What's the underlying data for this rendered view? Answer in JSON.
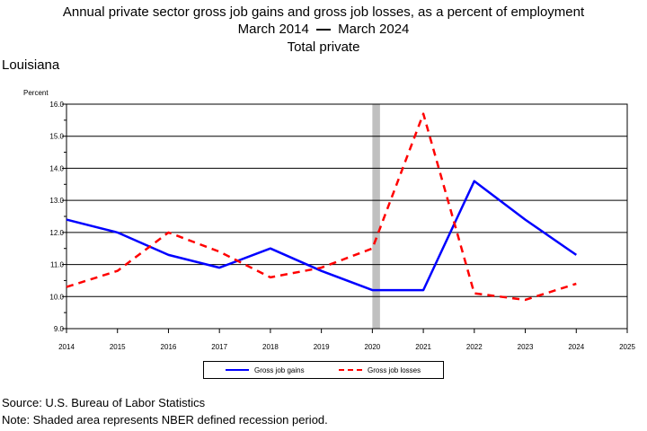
{
  "header": {
    "title": "Annual private sector gross job gains and gross job losses, as a percent of employment",
    "period_start": "March 2014",
    "period_end": "March 2024",
    "subtitle": "Total private",
    "region": "Louisiana"
  },
  "footer": {
    "source": "Source: U.S. Bureau of Labor Statistics",
    "note": "Note: Shaded area represents NBER defined recession period."
  },
  "chart_data": {
    "type": "line",
    "ylabel": "Percent",
    "xlim": [
      2014,
      2025
    ],
    "ylim": [
      9.0,
      16.0
    ],
    "x_ticks": [
      "2014",
      "2015",
      "2016",
      "2017",
      "2018",
      "2019",
      "2020",
      "2021",
      "2022",
      "2023",
      "2024",
      "2025"
    ],
    "y_ticks": [
      "9.0",
      "10.0",
      "11.0",
      "12.0",
      "13.0",
      "14.0",
      "15.0",
      "16.0"
    ],
    "grid": "horizontal",
    "legend_position": "bottom",
    "recession": [
      2020.0,
      2020.15
    ],
    "recession_color": "#c0c0c0",
    "x": [
      2014,
      2015,
      2016,
      2017,
      2018,
      2019,
      2020,
      2021,
      2022,
      2023,
      2024
    ],
    "series": [
      {
        "name": "Gross job gains",
        "color": "#0000ff",
        "style": "solid",
        "values": [
          12.4,
          12.0,
          11.3,
          10.9,
          11.5,
          10.8,
          10.2,
          10.2,
          13.6,
          12.4,
          11.3
        ]
      },
      {
        "name": "Gross job losses",
        "color": "#ff0000",
        "style": "dashed",
        "values": [
          10.3,
          10.8,
          12.0,
          11.4,
          10.6,
          10.9,
          11.5,
          15.7,
          10.1,
          9.9,
          10.4
        ]
      }
    ]
  }
}
